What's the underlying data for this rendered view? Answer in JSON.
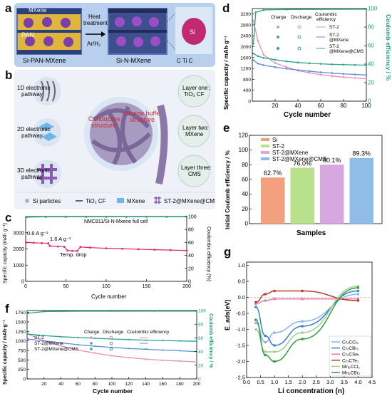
{
  "panel_letters": {
    "a": "a",
    "b": "b",
    "c": "c",
    "d": "d",
    "e": "e",
    "f": "f",
    "g": "g"
  },
  "schematic_a": {
    "label_mxene": "MXene",
    "label_pan": "PAN",
    "label_si_pan_mxene": "Si-PAN-MXene",
    "label_heat": "Heat\ntreatment",
    "label_gas": "Ar/H₂",
    "label_si_n_mxene": "Si-N-MXene",
    "label_si": "Si",
    "atoms": "C  Ti  C",
    "colors": {
      "bg": "#b8cfee",
      "frame": "#5a73b8",
      "pan": "#e0b53c",
      "si": "#7c3fa8",
      "mxene": "#2c3f7a"
    }
  },
  "schematic_b": {
    "pathways": [
      "1D electronic\npathway",
      "2D electronic\npathway",
      "3D electronic\npathway"
    ],
    "center_labels": [
      "Conductive\nstructure",
      "Volume buffer\nstructure"
    ],
    "layers": [
      "Layer one :\nTiO₂ CF",
      "Layer two:\nMXene",
      "Layer three:\nCMS"
    ],
    "legend": [
      "Si particles",
      "TiO₂ CF",
      "MXene",
      "ST-2@MXene@CMS"
    ],
    "colors": {
      "bg": "#eef2f8",
      "circle": "#d9e6f3",
      "red_text": "#d42a2a",
      "fiber": "#8c78a8"
    }
  },
  "chart_c": {
    "title": "NMC811/Si-N-Mxene full cell",
    "xlabel": "Cycle number",
    "ylabel": "Specific capacity (mAh g⁻¹)",
    "y2label": "Coulombic efficiency (%)",
    "rate1": "0.8 A g⁻¹",
    "rate2": "1.6 A g⁻¹",
    "annotation": "Temp. drop",
    "xticks": [
      "0",
      "50",
      "100",
      "150",
      "200"
    ],
    "yticks": [
      "0",
      "1000",
      "2000",
      "3000"
    ],
    "y2ticks": [
      "0",
      "20",
      "40",
      "60",
      "80",
      "100"
    ],
    "chart_data": {
      "type": "scatter",
      "xlim": [
        0,
        200
      ],
      "ylim": [
        0,
        4000
      ],
      "y2lim": [
        0,
        100
      ],
      "series": [
        {
          "axis": "left",
          "color": "#e0226e",
          "points": [
            [
              1,
              2400
            ],
            [
              10,
              2380
            ],
            [
              20,
              2360
            ],
            [
              28,
              2350
            ],
            [
              30,
              2180
            ],
            [
              40,
              2150
            ],
            [
              48,
              2130
            ],
            [
              52,
              1900
            ],
            [
              58,
              1880
            ],
            [
              64,
              1880
            ],
            [
              68,
              2120
            ],
            [
              80,
              2080
            ],
            [
              100,
              2040
            ],
            [
              120,
              2010
            ],
            [
              140,
              1980
            ],
            [
              160,
              1950
            ],
            [
              180,
              1930
            ],
            [
              200,
              1900
            ]
          ]
        },
        {
          "axis": "right",
          "color": "#14a085",
          "points": [
            [
              1,
              99
            ],
            [
              25,
              99.5
            ],
            [
              50,
              99.5
            ],
            [
              75,
              99.5
            ],
            [
              100,
              99.5
            ],
            [
              125,
              99.6
            ],
            [
              150,
              99.6
            ],
            [
              175,
              99.6
            ],
            [
              200,
              99.6
            ]
          ]
        }
      ]
    }
  },
  "chart_d": {
    "xlabel": "Cycle number",
    "ylabel": "Specific capacity / mAh·g⁻¹",
    "y2label": "Coulomb efficiency / %",
    "legend_headers": [
      "Charge",
      "Discharge",
      "Coulombic\nefficiency"
    ],
    "legend_names": [
      "ST-2",
      "ST-2\n@MXene",
      "ST-2\n@MXene@CMS"
    ],
    "xticks": [
      "20",
      "40",
      "60",
      "80",
      "100"
    ],
    "yticks": [
      "0",
      "400",
      "800",
      "1200",
      "1600",
      "2000",
      "2400",
      "2800",
      "3200"
    ],
    "y2ticks": [
      "0",
      "20",
      "40",
      "60",
      "80",
      "100"
    ],
    "chart_data": {
      "type": "line",
      "xlim": [
        0,
        100
      ],
      "ylim": [
        0,
        3400
      ],
      "y2lim": [
        0,
        100
      ],
      "series": [
        {
          "axis": "left",
          "color": "#e58fb7",
          "points": [
            [
              1,
              2950
            ],
            [
              5,
              2200
            ],
            [
              10,
              1700
            ],
            [
              20,
              1400
            ],
            [
              30,
              1250
            ],
            [
              40,
              1120
            ],
            [
              50,
              1040
            ],
            [
              60,
              970
            ],
            [
              70,
              920
            ],
            [
              80,
              880
            ],
            [
              90,
              850
            ],
            [
              100,
              820
            ]
          ]
        },
        {
          "axis": "left",
          "color": "#5b8fd8",
          "points": [
            [
              1,
              1500
            ],
            [
              5,
              1380
            ],
            [
              10,
              1320
            ],
            [
              20,
              1250
            ],
            [
              30,
              1190
            ],
            [
              40,
              1140
            ],
            [
              50,
              1100
            ],
            [
              60,
              1060
            ],
            [
              70,
              1030
            ],
            [
              80,
              1000
            ],
            [
              90,
              980
            ],
            [
              100,
              960
            ]
          ]
        },
        {
          "axis": "left",
          "color": "#2ca58d",
          "points": [
            [
              1,
              1750
            ],
            [
              5,
              1650
            ],
            [
              10,
              1590
            ],
            [
              20,
              1520
            ],
            [
              30,
              1460
            ],
            [
              40,
              1420
            ],
            [
              50,
              1390
            ],
            [
              60,
              1370
            ],
            [
              70,
              1350
            ],
            [
              80,
              1340
            ],
            [
              90,
              1330
            ],
            [
              100,
              1320
            ]
          ]
        },
        {
          "axis": "right",
          "color": "#2ca58d",
          "points": [
            [
              1,
              62
            ],
            [
              3,
              96
            ],
            [
              10,
              98.5
            ],
            [
              30,
              99
            ],
            [
              60,
              99.2
            ],
            [
              100,
              99.3
            ]
          ]
        }
      ]
    }
  },
  "chart_e": {
    "xlabel": "Samples",
    "ylabel": "Initial Coulomb efficiency / %",
    "yticks": [
      "0",
      "20",
      "40",
      "60",
      "80",
      "100",
      "120"
    ],
    "value_labels": [
      "62.7%",
      "76.0%",
      "80.1%",
      "89.3%"
    ],
    "chart_data": {
      "type": "bar",
      "categories": [
        "Si",
        "ST-2",
        "ST-2@MXene",
        "ST-2@MXene@CMS"
      ],
      "values": [
        62.7,
        76.0,
        80.1,
        89.3
      ],
      "colors": [
        "#f2a07e",
        "#b9e08a",
        "#d7a8e0",
        "#8fbce8"
      ],
      "ylim": [
        0,
        120
      ]
    }
  },
  "chart_f": {
    "xlabel": "Cycle number",
    "ylabel": "Specific capacity / mAh·g⁻¹",
    "y2label": "Coulomb efficiency / %",
    "legend_headers": [
      "Charge",
      "Discharge",
      "Coulombic efficiency"
    ],
    "legend_names": [
      "ST-2",
      "ST-2@MXene",
      "ST-2@MXene@CMS"
    ],
    "xticks": [
      "20",
      "40",
      "60",
      "80",
      "100",
      "120",
      "140",
      "160",
      "180",
      "200"
    ],
    "yticks": [
      "0",
      "250",
      "500",
      "750",
      "1000",
      "1250",
      "1500",
      "1750"
    ],
    "y2ticks": [
      "0",
      "20",
      "40",
      "60",
      "80",
      "100"
    ],
    "chart_data": {
      "type": "line",
      "xlim": [
        0,
        200
      ],
      "ylim": [
        0,
        1800
      ],
      "y2lim": [
        0,
        100
      ],
      "series": [
        {
          "axis": "left",
          "color": "#e58fb7",
          "points": [
            [
              1,
              1180
            ],
            [
              20,
              1000
            ],
            [
              40,
              870
            ],
            [
              60,
              760
            ],
            [
              80,
              680
            ],
            [
              100,
              610
            ],
            [
              120,
              560
            ],
            [
              140,
              520
            ],
            [
              160,
              490
            ],
            [
              180,
              470
            ],
            [
              200,
              450
            ]
          ]
        },
        {
          "axis": "left",
          "color": "#5b8fd8",
          "points": [
            [
              1,
              1050
            ],
            [
              20,
              1000
            ],
            [
              40,
              950
            ],
            [
              60,
              900
            ],
            [
              80,
              860
            ],
            [
              100,
              830
            ],
            [
              120,
              800
            ],
            [
              140,
              780
            ],
            [
              160,
              760
            ],
            [
              180,
              740
            ],
            [
              200,
              720
            ]
          ]
        },
        {
          "axis": "left",
          "color": "#2ca58d",
          "points": [
            [
              1,
              1180
            ],
            [
              20,
              1140
            ],
            [
              40,
              1110
            ],
            [
              60,
              1090
            ],
            [
              80,
              1070
            ],
            [
              100,
              1050
            ],
            [
              120,
              1035
            ],
            [
              140,
              1020
            ],
            [
              160,
              1010
            ],
            [
              180,
              1000
            ],
            [
              200,
              990
            ]
          ]
        },
        {
          "axis": "right",
          "color": "#2ca58d",
          "points": [
            [
              1,
              96
            ],
            [
              20,
              98.5
            ],
            [
              60,
              99
            ],
            [
              100,
              99
            ],
            [
              150,
              99.1
            ],
            [
              200,
              99.1
            ]
          ]
        }
      ]
    }
  },
  "chart_g": {
    "xlabel": "Li concentration (n)",
    "ylabel": "E_ads(eV)",
    "xticks": [
      "0.0",
      "0.5",
      "1.0",
      "1.5",
      "2.0",
      "2.5",
      "3.0",
      "3.5",
      "4.0",
      "4.5"
    ],
    "yticks": [
      "-2.5",
      "-2.0",
      "-1.5",
      "-1.0",
      "-0.5",
      "0.0",
      "0.5",
      "1.0"
    ],
    "chart_data": {
      "type": "line",
      "xlim": [
        0,
        4.5
      ],
      "ylim": [
        -2.5,
        1.1
      ],
      "series": [
        {
          "name": "Cr₂CCl₂",
          "color": "#8fb5e6",
          "points": [
            [
              0.33,
              -0.8
            ],
            [
              0.67,
              -1.4
            ],
            [
              1.0,
              -1.1
            ],
            [
              2.0,
              -0.75
            ],
            [
              4.0,
              0.1
            ]
          ]
        },
        {
          "name": "Cr₂CBr₂",
          "color": "#3a7fd6",
          "points": [
            [
              0.33,
              -0.3
            ],
            [
              0.67,
              -1.2
            ],
            [
              1.0,
              -1.5
            ],
            [
              2.0,
              -0.9
            ],
            [
              4.0,
              0.2
            ]
          ]
        },
        {
          "name": "Cr₂CSe₂",
          "color": "#e87ba6",
          "points": [
            [
              0.33,
              -0.2
            ],
            [
              0.67,
              -0.1
            ],
            [
              1.0,
              -0.05
            ],
            [
              2.0,
              -0.05
            ],
            [
              4.0,
              -0.05
            ]
          ]
        },
        {
          "name": "Cr₂CTe₂",
          "color": "#c0392b",
          "points": [
            [
              0.33,
              -0.15
            ],
            [
              0.67,
              0.1
            ],
            [
              1.0,
              0.2
            ],
            [
              2.0,
              0.2
            ],
            [
              4.0,
              -0.1
            ]
          ]
        },
        {
          "name": "Mn₂CCl₂",
          "color": "#9fd08f",
          "points": [
            [
              0.33,
              -1.0
            ],
            [
              0.67,
              -1.7
            ],
            [
              1.0,
              -1.7
            ],
            [
              2.0,
              -1.1
            ],
            [
              4.0,
              0.35
            ]
          ]
        },
        {
          "name": "Mn₂CBr₂",
          "color": "#2e9e3e",
          "points": [
            [
              0.33,
              -0.7
            ],
            [
              0.67,
              -1.8
            ],
            [
              1.0,
              -2.0
            ],
            [
              2.0,
              -1.3
            ],
            [
              4.0,
              0.3
            ]
          ]
        }
      ]
    }
  }
}
